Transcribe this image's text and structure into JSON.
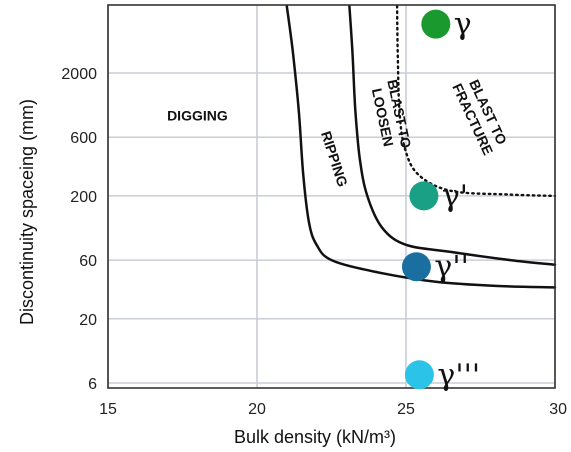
{
  "chart_data": {
    "type": "line",
    "xlabel": "Bulk density (kN/m³)",
    "ylabel": "Discontinuity spaceing (mm)",
    "x_ticks": [
      "15",
      "20",
      "25",
      "30"
    ],
    "y_ticks": [
      "6",
      "20",
      "60",
      "200",
      "600",
      "2000"
    ],
    "xlim": [
      15,
      30
    ],
    "y_scale": "log",
    "grid": true,
    "zones": [
      {
        "label": "DIGGING",
        "x": 18.0,
        "y": 900
      },
      {
        "label": "RIPPING",
        "x": 22.6,
        "y": 400
      },
      {
        "label": "BLAST TO LOOSEN",
        "x": 24.5,
        "y": 900
      },
      {
        "label": "BLAST TO FRACTURE",
        "x": 27.5,
        "y": 900
      }
    ],
    "series": [
      {
        "style": "solid",
        "points": [
          [
            21.0,
            7000
          ],
          [
            21.2,
            3000
          ],
          [
            21.4,
            1000
          ],
          [
            21.55,
            300
          ],
          [
            21.75,
            120
          ],
          [
            22.0,
            80
          ],
          [
            22.5,
            60
          ],
          [
            24.0,
            48
          ],
          [
            26.0,
            40
          ],
          [
            28.0,
            37
          ],
          [
            30.0,
            36
          ]
        ]
      },
      {
        "style": "solid",
        "points": [
          [
            23.1,
            7000
          ],
          [
            23.2,
            3000
          ],
          [
            23.3,
            1000
          ],
          [
            23.45,
            400
          ],
          [
            23.7,
            200
          ],
          [
            24.2,
            110
          ],
          [
            25.0,
            80
          ],
          [
            26.5,
            70
          ],
          [
            28.5,
            60
          ],
          [
            30.0,
            55
          ]
        ]
      },
      {
        "style": "dotted",
        "points": [
          [
            24.7,
            7000
          ],
          [
            24.72,
            3000
          ],
          [
            24.78,
            1000
          ],
          [
            24.95,
            500
          ],
          [
            25.4,
            300
          ],
          [
            26.5,
            220
          ],
          [
            28.5,
            205
          ],
          [
            30.0,
            200
          ]
        ]
      }
    ],
    "points": [
      {
        "label": "γ",
        "x": 26.0,
        "y": 5000,
        "color": "#1a9a2e"
      },
      {
        "label": "γ'",
        "x": 25.6,
        "y": 200,
        "color": "#1aa085"
      },
      {
        "label": "γ''",
        "x": 25.35,
        "y": 53,
        "color": "#1a6fa0"
      },
      {
        "label": "γ'''",
        "x": 25.45,
        "y": 7,
        "color": "#2bc4e8"
      }
    ]
  }
}
